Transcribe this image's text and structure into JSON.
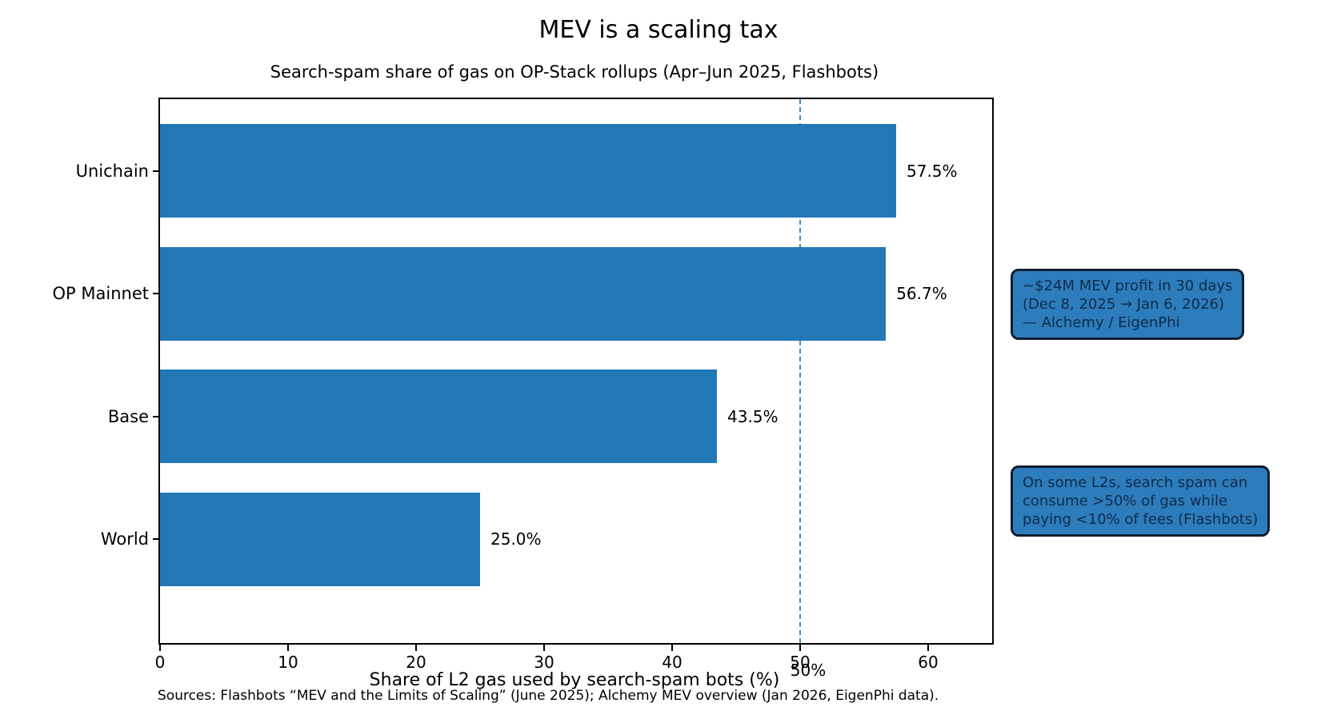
{
  "figure": {
    "title": "MEV is a scaling tax",
    "subtitle": "Search-spam share of gas on OP-Stack rollups (Apr–Jun 2025, Flashbots)",
    "source": "Sources: Flashbots “MEV and the Limits of Scaling” (June 2025); Alchemy MEV overview (Jan 2026, EigenPhi data)."
  },
  "chart_data": {
    "type": "bar",
    "orientation": "horizontal",
    "title": "MEV is a scaling tax",
    "subtitle": "Search-spam share of gas on OP-Stack rollups (Apr–Jun 2025, Flashbots)",
    "categories": [
      "Unichain",
      "OP Mainnet",
      "Base",
      "World"
    ],
    "values": [
      57.5,
      56.7,
      43.5,
      25.0
    ],
    "value_labels": [
      "57.5%",
      "56.7%",
      "43.5%",
      "25.0%"
    ],
    "xlabel": "Share of L2 gas used by search-spam bots (%)",
    "ylabel": "",
    "xlim": [
      0,
      65
    ],
    "x_ticks": [
      0,
      10,
      20,
      30,
      40,
      50,
      60
    ],
    "reference_line": {
      "x": 50,
      "label": "50%",
      "style": "dashed",
      "color": "#3b8cc2"
    },
    "bar_color": "#2278b5",
    "grid": false,
    "legend": "none"
  },
  "annotations": [
    {
      "lines": [
        "~$24M MEV profit in 30 days",
        "(Dec 8, 2025 → Jan 6, 2026)",
        "— Alchemy / EigenPhi"
      ],
      "fill": "#2d7cbb",
      "text_color": "#102c4c"
    },
    {
      "lines": [
        "On some L2s, search spam can",
        "consume >50% of gas while",
        "paying <10% of fees (Flashbots)"
      ],
      "fill": "#2d7cbb",
      "text_color": "#102c4c"
    }
  ]
}
